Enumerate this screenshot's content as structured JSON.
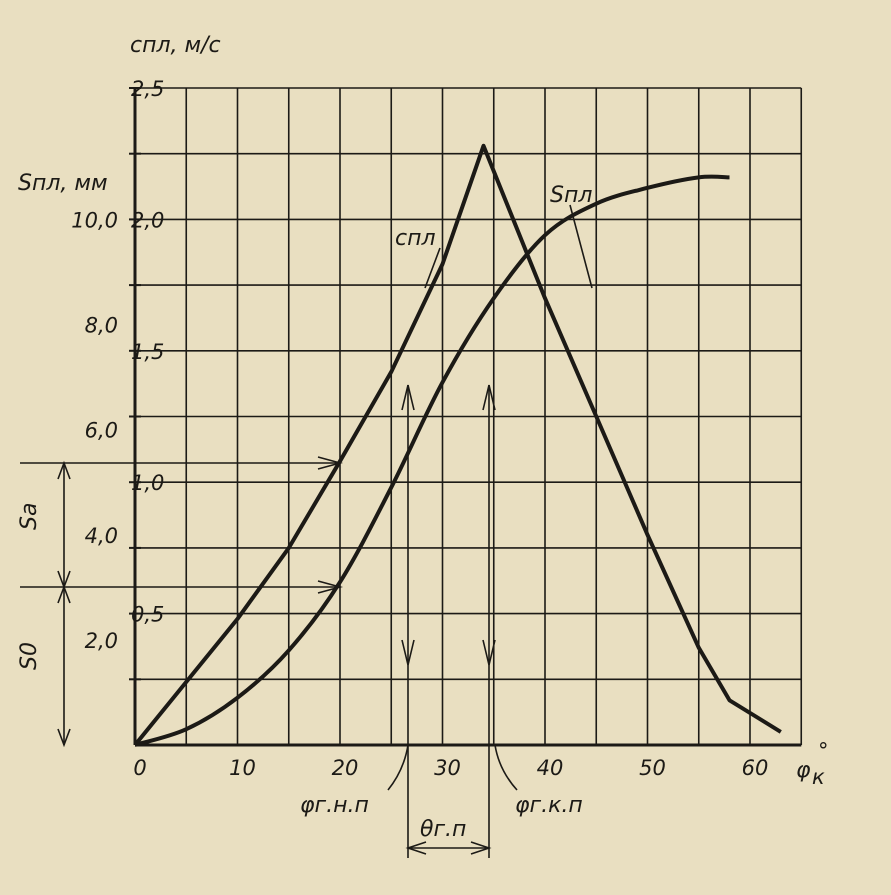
{
  "chart_data": {
    "type": "line",
    "x_axis": {
      "label": "φ",
      "label_sub": "к",
      "label_sup": "°",
      "ticks": [
        0,
        10,
        20,
        30,
        40,
        50,
        60
      ],
      "tick_labels": [
        "0",
        "10",
        "20",
        "30",
        "40",
        "50",
        "60"
      ],
      "range": [
        0,
        64
      ]
    },
    "y_left": {
      "label": "Sпл, мм",
      "ticks": [
        2,
        4,
        6,
        8,
        10
      ],
      "tick_labels": [
        "2,0",
        "4,0",
        "6,0",
        "8,0",
        "10,0"
      ],
      "range": [
        0,
        12.5
      ]
    },
    "y_right": {
      "label": "cпл, м/с",
      "ticks": [
        0.5,
        1.0,
        1.5,
        2.0,
        2.5
      ],
      "tick_labels": [
        "0,5",
        "1,0",
        "1,5",
        "2,0",
        "2,5"
      ],
      "range": [
        0,
        2.5
      ]
    },
    "grid": true,
    "series": [
      {
        "name": "cпл",
        "axis": "right",
        "x": [
          0,
          5,
          10,
          15,
          20,
          25,
          30,
          34,
          40,
          45,
          50,
          55,
          58,
          63
        ],
        "y": [
          0,
          0.24,
          0.48,
          0.75,
          1.08,
          1.42,
          1.83,
          2.28,
          1.7,
          1.25,
          0.8,
          0.37,
          0.17,
          0.05
        ]
      },
      {
        "name": "Sпл",
        "axis": "left",
        "x": [
          0,
          5,
          10,
          15,
          20,
          25,
          30,
          35,
          40,
          45,
          50,
          55,
          58
        ],
        "y": [
          0,
          0.3,
          0.9,
          1.8,
          3.1,
          4.9,
          6.9,
          8.5,
          9.7,
          10.3,
          10.6,
          10.8,
          10.8
        ]
      }
    ],
    "annotations": {
      "Sa": "Sa",
      "S0": "S0",
      "phi_gnp": "φг.н.п",
      "phi_gkp": "φг.к.п",
      "theta_gp": "θг.п"
    }
  }
}
